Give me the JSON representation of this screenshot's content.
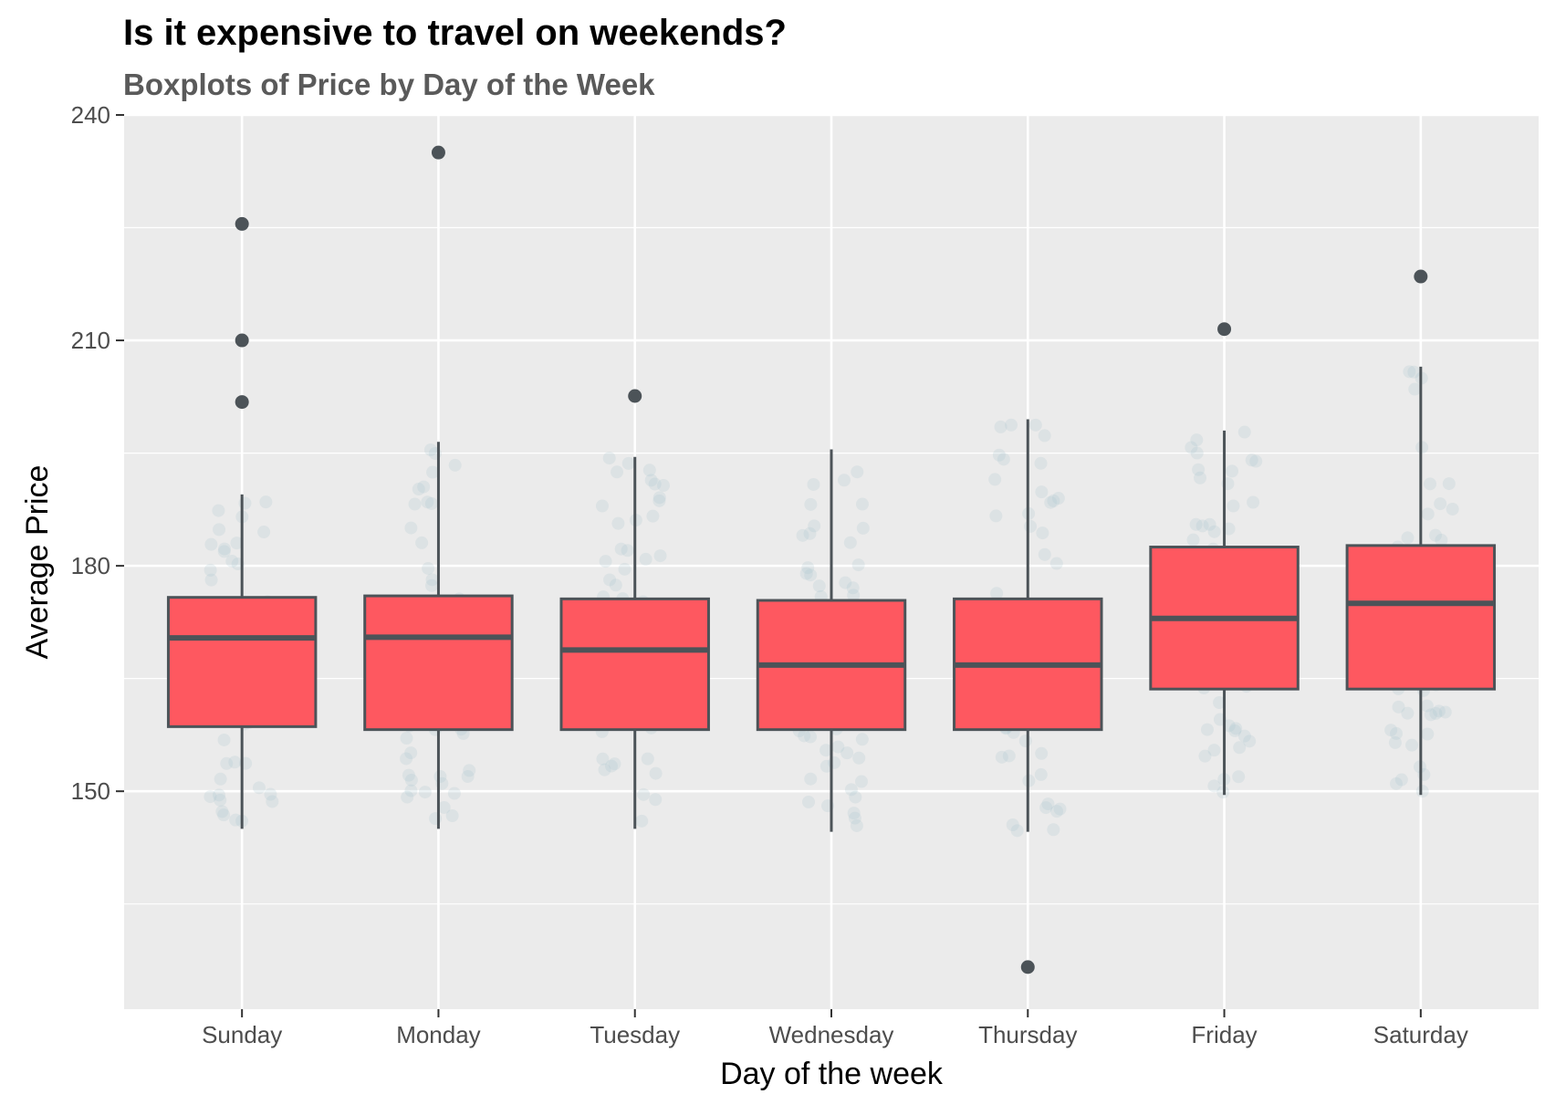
{
  "chart_data": {
    "type": "boxplot",
    "title": "Is it expensive to travel on weekends?",
    "subtitle": "Boxplots of Price by Day of the Week",
    "xlabel": "Day of the week",
    "ylabel": "Average Price",
    "ylim": [
      121,
      240
    ],
    "yticks": [
      150,
      180,
      210,
      240
    ],
    "grid": true,
    "categories": [
      "Sunday",
      "Monday",
      "Tuesday",
      "Wednesday",
      "Thursday",
      "Friday",
      "Saturday"
    ],
    "boxes": [
      {
        "day": "Sunday",
        "whisker_low": 145,
        "q1": 158.6,
        "median": 170.4,
        "q3": 175.8,
        "whisker_high": 189.5,
        "outliers": [
          225.5,
          210,
          201.8
        ]
      },
      {
        "day": "Monday",
        "whisker_low": 145,
        "q1": 158.2,
        "median": 170.5,
        "q3": 176,
        "whisker_high": 196.5,
        "outliers": [
          235
        ]
      },
      {
        "day": "Tuesday",
        "whisker_low": 145,
        "q1": 158.2,
        "median": 168.8,
        "q3": 175.6,
        "whisker_high": 194.5,
        "outliers": [
          202.6
        ]
      },
      {
        "day": "Wednesday",
        "whisker_low": 144.6,
        "q1": 158.2,
        "median": 166.8,
        "q3": 175.4,
        "whisker_high": 195.5,
        "outliers": []
      },
      {
        "day": "Thursday",
        "whisker_low": 144.6,
        "q1": 158.2,
        "median": 166.8,
        "q3": 175.6,
        "whisker_high": 199.5,
        "outliers": [
          126.6
        ]
      },
      {
        "day": "Friday",
        "whisker_low": 149.5,
        "q1": 163.6,
        "median": 173,
        "q3": 182.5,
        "whisker_high": 198,
        "outliers": [
          211.5
        ]
      },
      {
        "day": "Saturday",
        "whisker_low": 149.5,
        "q1": 163.6,
        "median": 175,
        "q3": 182.7,
        "whisker_high": 206.5,
        "outliers": [
          218.5
        ]
      }
    ],
    "colors": {
      "box_fill": "#fe5860",
      "box_stroke": "#4c5358",
      "jitter": "#a9c4cc",
      "panel": "#ebebeb",
      "grid": "#ffffff"
    }
  }
}
